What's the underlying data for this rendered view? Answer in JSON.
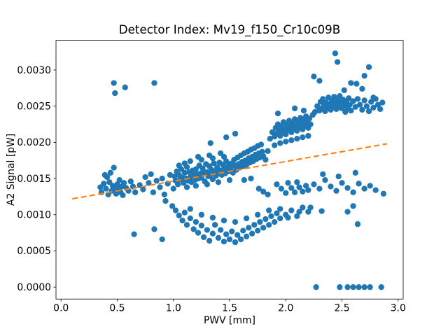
{
  "chart_data": {
    "type": "scatter",
    "title": "Detector Index: Mv19_f150_Cr10c09B",
    "xlabel": "PWV [mm]",
    "ylabel": "A2 Signal [pW]",
    "xlim": [
      -0.045,
      3.045
    ],
    "ylim": [
      -0.000165,
      0.00341
    ],
    "x_tick_values": [
      0.0,
      0.5,
      1.0,
      1.5,
      2.0,
      2.5,
      3.0
    ],
    "x_tick_labels": [
      "0.0",
      "0.5",
      "1.0",
      "1.5",
      "2.0",
      "2.5",
      "3.0"
    ],
    "y_tick_values": [
      0.0,
      0.0005,
      0.001,
      0.0015,
      0.002,
      0.0025,
      0.003
    ],
    "y_tick_labels": [
      "0.0000",
      "0.0005",
      "0.0010",
      "0.0015",
      "0.0020",
      "0.0025",
      "0.0030"
    ],
    "marker_color": "#1f77b4",
    "line_color": "#ff7f0e",
    "grid": false,
    "legend": null,
    "trend_line": {
      "style": "dashed",
      "x": [
        0.1,
        2.9
      ],
      "y": [
        0.00122,
        0.00198
      ]
    },
    "points": [
      [
        0.35,
        0.00138
      ],
      [
        0.36,
        0.00131
      ],
      [
        0.38,
        0.00143
      ],
      [
        0.39,
        0.00155
      ],
      [
        0.4,
        0.00136
      ],
      [
        0.41,
        0.00152
      ],
      [
        0.42,
        0.00128
      ],
      [
        0.43,
        0.00145
      ],
      [
        0.44,
        0.00158
      ],
      [
        0.45,
        0.00133
      ],
      [
        0.46,
        0.0014
      ],
      [
        0.47,
        0.00165
      ],
      [
        0.48,
        0.00136
      ],
      [
        0.49,
        0.00129
      ],
      [
        0.5,
        0.00142
      ],
      [
        0.51,
        0.00135
      ],
      [
        0.52,
        0.00148
      ],
      [
        0.53,
        0.00131
      ],
      [
        0.54,
        0.00139
      ],
      [
        0.55,
        0.00127
      ],
      [
        0.56,
        0.00144
      ],
      [
        0.58,
        0.00137
      ],
      [
        0.6,
        0.00133
      ],
      [
        0.62,
        0.00146
      ],
      [
        0.64,
        0.00139
      ],
      [
        0.66,
        0.00131
      ],
      [
        0.47,
        0.00282
      ],
      [
        0.48,
        0.00268
      ],
      [
        0.57,
        0.00276
      ],
      [
        0.83,
        0.00282
      ],
      [
        0.65,
        0.00073
      ],
      [
        0.83,
        0.0008
      ],
      [
        0.9,
        0.00066
      ],
      [
        0.7,
        0.00141
      ],
      [
        0.73,
        0.00135
      ],
      [
        0.75,
        0.00152
      ],
      [
        0.78,
        0.00144
      ],
      [
        0.8,
        0.00156
      ],
      [
        0.82,
        0.00131
      ],
      [
        0.85,
        0.00147
      ],
      [
        0.88,
        0.00138
      ],
      [
        0.9,
        0.0015
      ],
      [
        0.92,
        0.00128
      ],
      [
        0.93,
        0.00119
      ],
      [
        0.95,
        0.00143
      ],
      [
        0.97,
        0.00155
      ],
      [
        0.99,
        0.00112
      ],
      [
        1.0,
        0.00136
      ],
      [
        1.01,
        0.00153
      ],
      [
        1.02,
        0.00147
      ],
      [
        1.03,
        0.0016
      ],
      [
        1.04,
        0.00142
      ],
      [
        1.05,
        0.00155
      ],
      [
        1.06,
        0.00149
      ],
      [
        1.07,
        0.00163
      ],
      [
        1.08,
        0.00151
      ],
      [
        1.09,
        0.00144
      ],
      [
        1.1,
        0.00158
      ],
      [
        1.11,
        0.0015
      ],
      [
        1.12,
        0.00166
      ],
      [
        1.13,
        0.00147
      ],
      [
        1.14,
        0.00159
      ],
      [
        1.15,
        0.00152
      ],
      [
        1.16,
        0.00145
      ],
      [
        1.17,
        0.00161
      ],
      [
        1.18,
        0.00154
      ],
      [
        1.19,
        0.00148
      ],
      [
        1.2,
        0.00163
      ],
      [
        1.21,
        0.00156
      ],
      [
        1.22,
        0.0015
      ],
      [
        1.23,
        0.00168
      ],
      [
        1.24,
        0.00157
      ],
      [
        1.25,
        0.00151
      ],
      [
        1.26,
        0.00164
      ],
      [
        1.27,
        0.00158
      ],
      [
        1.28,
        0.00146
      ],
      [
        1.29,
        0.0017
      ],
      [
        1.3,
        0.00159
      ],
      [
        1.31,
        0.00153
      ],
      [
        1.32,
        0.00167
      ],
      [
        1.33,
        0.00156
      ],
      [
        1.34,
        0.00162
      ],
      [
        1.35,
        0.00149
      ],
      [
        1.36,
        0.00171
      ],
      [
        1.37,
        0.0016
      ],
      [
        1.38,
        0.00154
      ],
      [
        1.39,
        0.00165
      ],
      [
        1.4,
        0.00158
      ],
      [
        1.41,
        0.00172
      ],
      [
        1.42,
        0.00161
      ],
      [
        1.43,
        0.00155
      ],
      [
        1.44,
        0.00169
      ],
      [
        1.45,
        0.00163
      ],
      [
        1.46,
        0.00157
      ],
      [
        1.47,
        0.00174
      ],
      [
        1.48,
        0.00166
      ],
      [
        1.49,
        0.0016
      ],
      [
        1.5,
        0.0017
      ],
      [
        1.05,
        0.00168
      ],
      [
        1.1,
        0.00171
      ],
      [
        1.15,
        0.00174
      ],
      [
        1.2,
        0.0014
      ],
      [
        1.25,
        0.00176
      ],
      [
        1.3,
        0.00142
      ],
      [
        1.35,
        0.00178
      ],
      [
        1.4,
        0.00145
      ],
      [
        1.45,
        0.0018
      ],
      [
        1.5,
        0.00148
      ],
      [
        1.12,
        0.00138
      ],
      [
        1.22,
        0.0018
      ],
      [
        1.32,
        0.00182
      ],
      [
        1.42,
        0.00185
      ],
      [
        1.33,
        0.00199
      ],
      [
        1.47,
        0.00207
      ],
      [
        1.51,
        0.00164
      ],
      [
        1.52,
        0.00171
      ],
      [
        1.53,
        0.00158
      ],
      [
        1.54,
        0.00176
      ],
      [
        1.55,
        0.00168
      ],
      [
        1.56,
        0.00162
      ],
      [
        1.57,
        0.00179
      ],
      [
        1.58,
        0.0017
      ],
      [
        1.59,
        0.00165
      ],
      [
        1.6,
        0.00182
      ],
      [
        1.61,
        0.00173
      ],
      [
        1.62,
        0.00167
      ],
      [
        1.63,
        0.00185
      ],
      [
        1.64,
        0.00175
      ],
      [
        1.65,
        0.00169
      ],
      [
        1.66,
        0.00187
      ],
      [
        1.67,
        0.00178
      ],
      [
        1.68,
        0.00172
      ],
      [
        1.69,
        0.0019
      ],
      [
        1.7,
        0.0018
      ],
      [
        1.71,
        0.00174
      ],
      [
        1.72,
        0.00192
      ],
      [
        1.73,
        0.00183
      ],
      [
        1.74,
        0.00177
      ],
      [
        1.75,
        0.00195
      ],
      [
        1.76,
        0.00185
      ],
      [
        1.77,
        0.00179
      ],
      [
        1.78,
        0.00197
      ],
      [
        1.79,
        0.00187
      ],
      [
        1.8,
        0.00181
      ],
      [
        1.82,
        0.00176
      ],
      [
        1.84,
        0.00188
      ],
      [
        1.76,
        0.00136
      ],
      [
        1.8,
        0.00132
      ],
      [
        1.84,
        0.00128
      ],
      [
        1.55,
        0.00212
      ],
      [
        1.63,
        0.00148
      ],
      [
        1.69,
        0.0015
      ],
      [
        1.86,
        0.00205
      ],
      [
        1.88,
        0.00214
      ],
      [
        1.9,
        0.00208
      ],
      [
        1.91,
        0.0022
      ],
      [
        1.92,
        0.00212
      ],
      [
        1.93,
        0.00225
      ],
      [
        1.94,
        0.00216
      ],
      [
        1.95,
        0.00209
      ],
      [
        1.96,
        0.00222
      ],
      [
        1.97,
        0.00215
      ],
      [
        1.98,
        0.00228
      ],
      [
        1.99,
        0.00218
      ],
      [
        2.0,
        0.00211
      ],
      [
        2.01,
        0.00224
      ],
      [
        2.02,
        0.00217
      ],
      [
        2.03,
        0.0023
      ],
      [
        2.04,
        0.00221
      ],
      [
        2.05,
        0.00214
      ],
      [
        2.06,
        0.00226
      ],
      [
        2.07,
        0.00219
      ],
      [
        2.08,
        0.00232
      ],
      [
        2.09,
        0.00223
      ],
      [
        2.1,
        0.00216
      ],
      [
        2.11,
        0.00229
      ],
      [
        2.12,
        0.00221
      ],
      [
        2.13,
        0.00234
      ],
      [
        2.14,
        0.00225
      ],
      [
        2.15,
        0.00218
      ],
      [
        2.16,
        0.00231
      ],
      [
        2.17,
        0.00223
      ],
      [
        2.18,
        0.00236
      ],
      [
        2.19,
        0.00227
      ],
      [
        2.2,
        0.0022
      ],
      [
        2.21,
        0.00233
      ],
      [
        2.22,
        0.00225
      ],
      [
        2.24,
        0.00238
      ],
      [
        1.9,
        0.00196
      ],
      [
        1.95,
        0.00199
      ],
      [
        2.0,
        0.00201
      ],
      [
        2.05,
        0.00203
      ],
      [
        2.1,
        0.00205
      ],
      [
        2.15,
        0.00207
      ],
      [
        2.2,
        0.00209
      ],
      [
        1.93,
        0.0024
      ],
      [
        2.08,
        0.00247
      ],
      [
        2.16,
        0.00244
      ],
      [
        2.26,
        0.00242
      ],
      [
        2.28,
        0.0025
      ],
      [
        2.3,
        0.00244
      ],
      [
        2.31,
        0.00256
      ],
      [
        2.32,
        0.00247
      ],
      [
        2.33,
        0.0026
      ],
      [
        2.34,
        0.00251
      ],
      [
        2.35,
        0.00243
      ],
      [
        2.36,
        0.00255
      ],
      [
        2.37,
        0.00248
      ],
      [
        2.38,
        0.00262
      ],
      [
        2.39,
        0.00252
      ],
      [
        2.4,
        0.00245
      ],
      [
        2.41,
        0.00257
      ],
      [
        2.42,
        0.00249
      ],
      [
        2.43,
        0.00263
      ],
      [
        2.44,
        0.00254
      ],
      [
        2.45,
        0.00246
      ],
      [
        2.46,
        0.00258
      ],
      [
        2.47,
        0.0025
      ],
      [
        2.48,
        0.00264
      ],
      [
        2.49,
        0.00255
      ],
      [
        2.5,
        0.00247
      ],
      [
        2.51,
        0.00259
      ],
      [
        2.52,
        0.00251
      ],
      [
        2.53,
        0.00242
      ],
      [
        2.54,
        0.00256
      ],
      [
        2.55,
        0.00248
      ],
      [
        2.56,
        0.00261
      ],
      [
        2.57,
        0.00252
      ],
      [
        2.58,
        0.00244
      ],
      [
        2.6,
        0.00257
      ],
      [
        2.62,
        0.00249
      ],
      [
        2.64,
        0.0026
      ],
      [
        2.25,
        0.00291
      ],
      [
        2.3,
        0.00285
      ],
      [
        2.44,
        0.00323
      ],
      [
        2.46,
        0.00311
      ],
      [
        2.52,
        0.00272
      ],
      [
        2.58,
        0.00282
      ],
      [
        2.63,
        0.00281
      ],
      [
        2.68,
        0.00274
      ],
      [
        2.7,
        0.00292
      ],
      [
        2.74,
        0.00304
      ],
      [
        2.66,
        0.00252
      ],
      [
        2.68,
        0.00245
      ],
      [
        2.7,
        0.00258
      ],
      [
        2.72,
        0.0025
      ],
      [
        2.74,
        0.00243
      ],
      [
        2.76,
        0.00256
      ],
      [
        2.78,
        0.00248
      ],
      [
        2.8,
        0.0026
      ],
      [
        2.82,
        0.00252
      ],
      [
        2.84,
        0.00246
      ],
      [
        2.86,
        0.00255
      ],
      [
        2.78,
        0.00262
      ],
      [
        2.87,
        0.00129
      ],
      [
        1.92,
        0.00142
      ],
      [
        1.96,
        0.00136
      ],
      [
        2.0,
        0.0013
      ],
      [
        2.02,
        0.00144
      ],
      [
        2.05,
        0.00137
      ],
      [
        2.08,
        0.00131
      ],
      [
        2.1,
        0.00145
      ],
      [
        2.12,
        0.00138
      ],
      [
        2.15,
        0.00132
      ],
      [
        2.18,
        0.0014
      ],
      [
        2.2,
        0.00134
      ],
      [
        2.25,
        0.00142
      ],
      [
        2.3,
        0.00136
      ],
      [
        2.35,
        0.00148
      ],
      [
        2.4,
        0.00139
      ],
      [
        2.45,
        0.00133
      ],
      [
        2.5,
        0.00144
      ],
      [
        2.55,
        0.00137
      ],
      [
        2.6,
        0.00131
      ],
      [
        2.65,
        0.00143
      ],
      [
        2.7,
        0.00136
      ],
      [
        2.75,
        0.0014
      ],
      [
        2.8,
        0.00134
      ],
      [
        2.33,
        0.00156
      ],
      [
        2.47,
        0.00153
      ],
      [
        2.62,
        0.00158
      ],
      [
        1.02,
        0.00106
      ],
      [
        1.05,
        0.00099
      ],
      [
        1.08,
        0.00092
      ],
      [
        1.1,
        0.00103
      ],
      [
        1.12,
        0.00086
      ],
      [
        1.15,
        0.00095
      ],
      [
        1.18,
        0.0008
      ],
      [
        1.2,
        0.0009
      ],
      [
        1.22,
        0.00075
      ],
      [
        1.25,
        0.00085
      ],
      [
        1.27,
        0.00069
      ],
      [
        1.3,
        0.00079
      ],
      [
        1.32,
        0.00064
      ],
      [
        1.35,
        0.00074
      ],
      [
        1.37,
        0.00086
      ],
      [
        1.4,
        0.00068
      ],
      [
        1.42,
        0.00079
      ],
      [
        1.45,
        0.00063
      ],
      [
        1.47,
        0.00073
      ],
      [
        1.5,
        0.00066
      ],
      [
        1.52,
        0.00077
      ],
      [
        1.55,
        0.00062
      ],
      [
        1.57,
        0.00072
      ],
      [
        1.6,
        0.00066
      ],
      [
        1.62,
        0.00078
      ],
      [
        1.65,
        0.0007
      ],
      [
        1.67,
        0.00082
      ],
      [
        1.7,
        0.00074
      ],
      [
        1.72,
        0.00086
      ],
      [
        1.75,
        0.00078
      ],
      [
        1.77,
        0.0009
      ],
      [
        1.8,
        0.00082
      ],
      [
        1.82,
        0.00094
      ],
      [
        1.85,
        0.00086
      ],
      [
        1.87,
        0.00098
      ],
      [
        1.9,
        0.0009
      ],
      [
        1.92,
        0.00102
      ],
      [
        1.95,
        0.00095
      ],
      [
        1.15,
        0.00108
      ],
      [
        1.25,
        0.001
      ],
      [
        1.35,
        0.00096
      ],
      [
        1.45,
        0.00092
      ],
      [
        1.55,
        0.0009
      ],
      [
        1.65,
        0.00095
      ],
      [
        1.75,
        0.001
      ],
      [
        1.85,
        0.00106
      ],
      [
        1.95,
        0.00108
      ],
      [
        2.0,
        0.001
      ],
      [
        2.05,
        0.00106
      ],
      [
        2.1,
        0.00098
      ],
      [
        2.15,
        0.0011
      ],
      [
        2.2,
        0.00104
      ],
      [
        2.02,
        0.00096
      ],
      [
        2.12,
        0.00104
      ],
      [
        2.22,
        0.0011
      ],
      [
        2.32,
        0.00105
      ],
      [
        2.55,
        0.00104
      ],
      [
        2.6,
        0.00112
      ],
      [
        2.64,
        0.00087
      ],
      [
        2.27,
        0.0
      ],
      [
        2.48,
        0.0
      ],
      [
        2.55,
        0.0
      ],
      [
        2.6,
        0.0
      ],
      [
        2.65,
        0.0
      ],
      [
        2.7,
        0.0
      ],
      [
        2.75,
        0.0
      ],
      [
        2.85,
        0.0
      ]
    ]
  }
}
